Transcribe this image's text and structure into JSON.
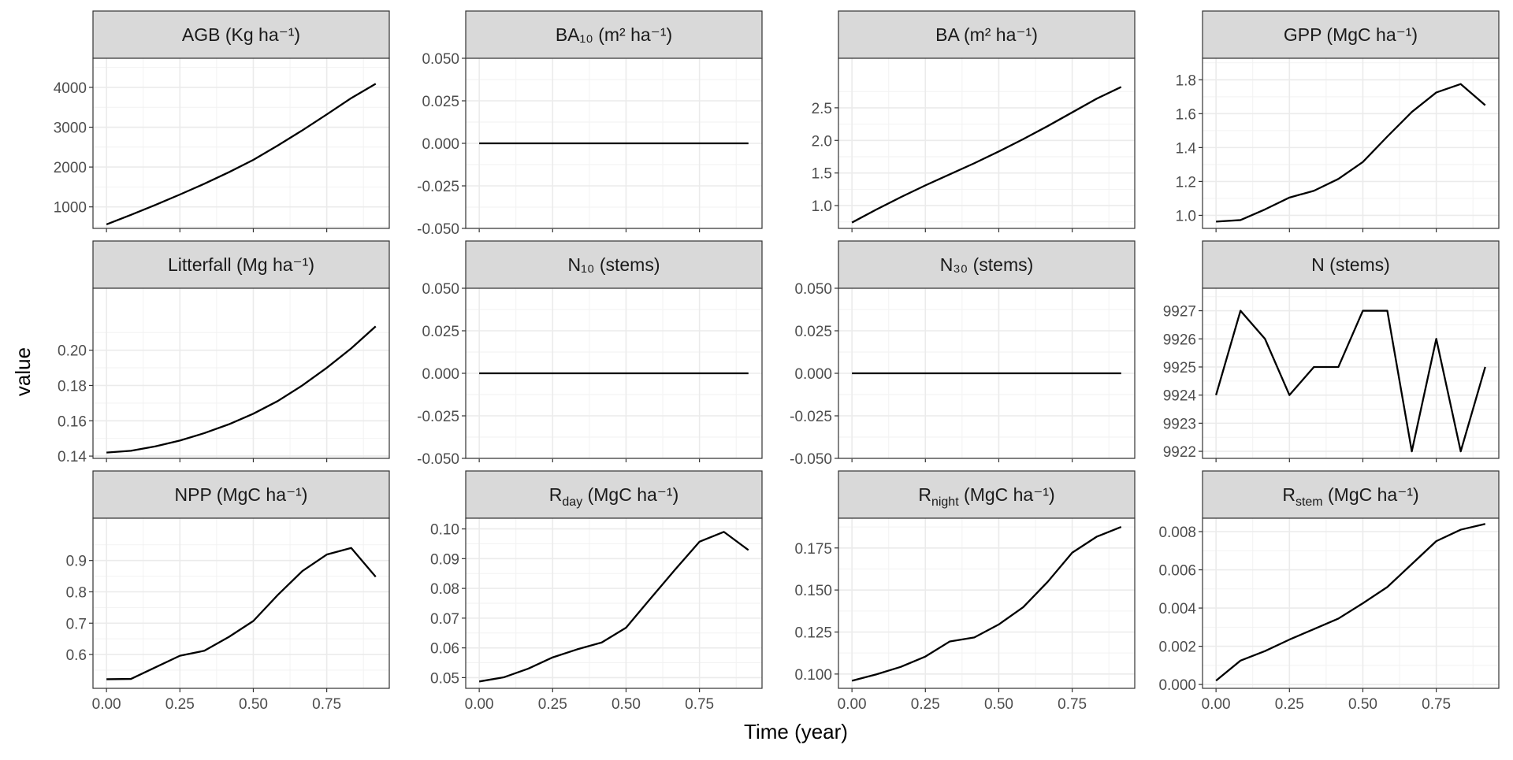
{
  "figure": {
    "xlabel": "Time (year)",
    "ylabel": "value"
  },
  "chart_data": [
    {
      "type": "line",
      "title": "AGB (Kg ha⁻¹)",
      "x": [
        0,
        0.0833,
        0.1667,
        0.25,
        0.3333,
        0.4167,
        0.5,
        0.5833,
        0.6667,
        0.75,
        0.8333,
        0.9167
      ],
      "values": [
        560,
        800,
        1050,
        1310,
        1580,
        1870,
        2180,
        2540,
        2920,
        3320,
        3730,
        4090
      ],
      "xlim": [
        -0.046,
        0.963
      ],
      "ylim": [
        460,
        4730
      ],
      "xticks": [
        0,
        0.25,
        0.5,
        0.75
      ],
      "xtick_labels": [
        "0.00",
        "0.25",
        "0.50",
        "0.75"
      ],
      "yticks": [
        1000,
        2000,
        3000,
        4000
      ],
      "ytick_labels": [
        "1000",
        "2000",
        "3000",
        "4000"
      ]
    },
    {
      "type": "line",
      "title": "BA₁₀ (m² ha⁻¹)",
      "x": [
        0,
        0.0833,
        0.1667,
        0.25,
        0.3333,
        0.4167,
        0.5,
        0.5833,
        0.6667,
        0.75,
        0.8333,
        0.9167
      ],
      "values": [
        0,
        0,
        0,
        0,
        0,
        0,
        0,
        0,
        0,
        0,
        0,
        0
      ],
      "xlim": [
        -0.046,
        0.963
      ],
      "ylim": [
        -0.05,
        0.05
      ],
      "xticks": [
        0,
        0.25,
        0.5,
        0.75
      ],
      "xtick_labels": [
        "0.00",
        "0.25",
        "0.50",
        "0.75"
      ],
      "yticks": [
        -0.05,
        -0.025,
        0,
        0.025,
        0.05
      ],
      "ytick_labels": [
        "-0.050",
        "-0.025",
        "0.000",
        "0.025",
        "0.050"
      ]
    },
    {
      "type": "line",
      "title": "BA (m² ha⁻¹)",
      "x": [
        0,
        0.0833,
        0.1667,
        0.25,
        0.3333,
        0.4167,
        0.5,
        0.5833,
        0.6667,
        0.75,
        0.8333,
        0.9167
      ],
      "values": [
        0.74,
        0.94,
        1.13,
        1.31,
        1.48,
        1.65,
        1.83,
        2.02,
        2.22,
        2.43,
        2.64,
        2.82
      ],
      "xlim": [
        -0.046,
        0.963
      ],
      "ylim": [
        0.65,
        3.26
      ],
      "xticks": [
        0,
        0.25,
        0.5,
        0.75
      ],
      "xtick_labels": [
        "0.00",
        "0.25",
        "0.50",
        "0.75"
      ],
      "yticks": [
        1.0,
        1.5,
        2.0,
        2.5
      ],
      "ytick_labels": [
        "1.0",
        "1.5",
        "2.0",
        "2.5"
      ]
    },
    {
      "type": "line",
      "title": "GPP (MgC ha⁻¹)",
      "x": [
        0,
        0.0833,
        0.1667,
        0.25,
        0.3333,
        0.4167,
        0.5,
        0.5833,
        0.6667,
        0.75,
        0.8333,
        0.9167
      ],
      "values": [
        0.963,
        0.972,
        1.035,
        1.105,
        1.145,
        1.215,
        1.315,
        1.465,
        1.61,
        1.725,
        1.775,
        1.65
      ],
      "xlim": [
        -0.046,
        0.963
      ],
      "ylim": [
        0.923,
        1.927
      ],
      "xticks": [
        0,
        0.25,
        0.5,
        0.75
      ],
      "xtick_labels": [
        "0.00",
        "0.25",
        "0.50",
        "0.75"
      ],
      "yticks": [
        1.0,
        1.2,
        1.4,
        1.6,
        1.8
      ],
      "ytick_labels": [
        "1.0",
        "1.2",
        "1.4",
        "1.6",
        "1.8"
      ]
    },
    {
      "type": "line",
      "title": "Litterfall (Mg ha⁻¹)",
      "x": [
        0,
        0.0833,
        0.1667,
        0.25,
        0.3333,
        0.4167,
        0.5,
        0.5833,
        0.6667,
        0.75,
        0.8333,
        0.9167
      ],
      "values": [
        0.142,
        0.143,
        0.1455,
        0.1488,
        0.153,
        0.158,
        0.164,
        0.1712,
        0.18,
        0.19,
        0.201,
        0.2135
      ],
      "xlim": [
        -0.046,
        0.963
      ],
      "ylim": [
        0.1387,
        0.2351
      ],
      "xticks": [
        0,
        0.25,
        0.5,
        0.75
      ],
      "xtick_labels": [
        "0.00",
        "0.25",
        "0.50",
        "0.75"
      ],
      "yticks": [
        0.14,
        0.16,
        0.18,
        0.2
      ],
      "ytick_labels": [
        "0.14",
        "0.16",
        "0.18",
        "0.20"
      ]
    },
    {
      "type": "line",
      "title": "N₁₀ (stems)",
      "x": [
        0,
        0.0833,
        0.1667,
        0.25,
        0.3333,
        0.4167,
        0.5,
        0.5833,
        0.6667,
        0.75,
        0.8333,
        0.9167
      ],
      "values": [
        0,
        0,
        0,
        0,
        0,
        0,
        0,
        0,
        0,
        0,
        0,
        0
      ],
      "xlim": [
        -0.046,
        0.963
      ],
      "ylim": [
        -0.05,
        0.05
      ],
      "xticks": [
        0,
        0.25,
        0.5,
        0.75
      ],
      "xtick_labels": [
        "0.00",
        "0.25",
        "0.50",
        "0.75"
      ],
      "yticks": [
        -0.05,
        -0.025,
        0,
        0.025,
        0.05
      ],
      "ytick_labels": [
        "-0.050",
        "-0.025",
        "0.000",
        "0.025",
        "0.050"
      ]
    },
    {
      "type": "line",
      "title": "N₃₀ (stems)",
      "x": [
        0,
        0.0833,
        0.1667,
        0.25,
        0.3333,
        0.4167,
        0.5,
        0.5833,
        0.6667,
        0.75,
        0.8333,
        0.9167
      ],
      "values": [
        0,
        0,
        0,
        0,
        0,
        0,
        0,
        0,
        0,
        0,
        0,
        0
      ],
      "xlim": [
        -0.046,
        0.963
      ],
      "ylim": [
        -0.05,
        0.05
      ],
      "xticks": [
        0,
        0.25,
        0.5,
        0.75
      ],
      "xtick_labels": [
        "0.00",
        "0.25",
        "0.50",
        "0.75"
      ],
      "yticks": [
        -0.05,
        -0.025,
        0,
        0.025,
        0.05
      ],
      "ytick_labels": [
        "-0.050",
        "-0.025",
        "0.000",
        "0.025",
        "0.050"
      ]
    },
    {
      "type": "line",
      "title": "N (stems)",
      "x": [
        0,
        0.0833,
        0.1667,
        0.25,
        0.3333,
        0.4167,
        0.5,
        0.5833,
        0.6667,
        0.75,
        0.8333,
        0.9167
      ],
      "values": [
        9924,
        9927,
        9926,
        9924,
        9925,
        9925,
        9927,
        9927,
        9922,
        9926,
        9922,
        9925
      ],
      "xlim": [
        -0.046,
        0.963
      ],
      "ylim": [
        9921.75,
        9927.8
      ],
      "xticks": [
        0,
        0.25,
        0.5,
        0.75
      ],
      "xtick_labels": [
        "0.00",
        "0.25",
        "0.50",
        "0.75"
      ],
      "yticks": [
        9922,
        9923,
        9924,
        9925,
        9926,
        9927
      ],
      "ytick_labels": [
        "9922",
        "9923",
        "9924",
        "9925",
        "9926",
        "9927"
      ]
    },
    {
      "type": "line",
      "title": "NPP (MgC ha⁻¹)",
      "x": [
        0,
        0.0833,
        0.1667,
        0.25,
        0.3333,
        0.4167,
        0.5,
        0.5833,
        0.6667,
        0.75,
        0.8333,
        0.9167
      ],
      "values": [
        0.521,
        0.522,
        0.559,
        0.596,
        0.612,
        0.656,
        0.707,
        0.79,
        0.866,
        0.919,
        0.94,
        0.848
      ],
      "xlim": [
        -0.046,
        0.963
      ],
      "ylim": [
        0.492,
        1.035
      ],
      "xticks": [
        0,
        0.25,
        0.5,
        0.75
      ],
      "xtick_labels": [
        "0.00",
        "0.25",
        "0.50",
        "0.75"
      ],
      "yticks": [
        0.6,
        0.7,
        0.8,
        0.9
      ],
      "ytick_labels": [
        "0.6",
        "0.7",
        "0.8",
        "0.9"
      ]
    },
    {
      "type": "line",
      "title": "Rday (MgC ha⁻¹)",
      "title_main": "R",
      "title_sub": "day",
      "title_rest": " (MgC ha⁻¹)",
      "x": [
        0,
        0.0833,
        0.1667,
        0.25,
        0.3333,
        0.4167,
        0.5,
        0.5833,
        0.6667,
        0.75,
        0.8333,
        0.9167
      ],
      "values": [
        0.0487,
        0.0501,
        0.053,
        0.0568,
        0.0595,
        0.0618,
        0.0668,
        0.0766,
        0.0863,
        0.0957,
        0.099,
        0.0929
      ],
      "xlim": [
        -0.046,
        0.963
      ],
      "ylim": [
        0.0464,
        0.1036
      ],
      "xticks": [
        0,
        0.25,
        0.5,
        0.75
      ],
      "xtick_labels": [
        "0.00",
        "0.25",
        "0.50",
        "0.75"
      ],
      "yticks": [
        0.05,
        0.06,
        0.07,
        0.08,
        0.09,
        0.1
      ],
      "ytick_labels": [
        "0.05",
        "0.06",
        "0.07",
        "0.08",
        "0.09",
        "0.10"
      ]
    },
    {
      "type": "line",
      "title": "Rnight (MgC ha⁻¹)",
      "title_main": "R",
      "title_sub": "night",
      "title_rest": " (MgC ha⁻¹)",
      "x": [
        0,
        0.0833,
        0.1667,
        0.25,
        0.3333,
        0.4167,
        0.5,
        0.5833,
        0.6667,
        0.75,
        0.8333,
        0.9167
      ],
      "values": [
        0.096,
        0.0998,
        0.1043,
        0.1104,
        0.1194,
        0.1218,
        0.1295,
        0.1398,
        0.1549,
        0.1722,
        0.1817,
        0.1875
      ],
      "xlim": [
        -0.046,
        0.963
      ],
      "ylim": [
        0.0915,
        0.1927
      ],
      "xticks": [
        0,
        0.25,
        0.5,
        0.75
      ],
      "xtick_labels": [
        "0.00",
        "0.25",
        "0.50",
        "0.75"
      ],
      "yticks": [
        0.1,
        0.125,
        0.15,
        0.175
      ],
      "ytick_labels": [
        "0.100",
        "0.125",
        "0.150",
        "0.175"
      ]
    },
    {
      "type": "line",
      "title": "Rstem (MgC ha⁻¹)",
      "title_main": "R",
      "title_sub": "stem",
      "title_rest": " (MgC ha⁻¹)",
      "x": [
        0,
        0.0833,
        0.1667,
        0.25,
        0.3333,
        0.4167,
        0.5,
        0.5833,
        0.6667,
        0.75,
        0.8333,
        0.9167
      ],
      "values": [
        0.0002,
        0.00125,
        0.00175,
        0.00235,
        0.0029,
        0.00345,
        0.00425,
        0.0051,
        0.0063,
        0.0075,
        0.0081,
        0.0084
      ],
      "xlim": [
        -0.046,
        0.963
      ],
      "ylim": [
        -0.0002,
        0.0087
      ],
      "xticks": [
        0,
        0.25,
        0.5,
        0.75
      ],
      "xtick_labels": [
        "0.00",
        "0.25",
        "0.50",
        "0.75"
      ],
      "yticks": [
        0,
        0.002,
        0.004,
        0.006,
        0.008
      ],
      "ytick_labels": [
        "0.000",
        "0.002",
        "0.004",
        "0.006",
        "0.008"
      ]
    }
  ]
}
